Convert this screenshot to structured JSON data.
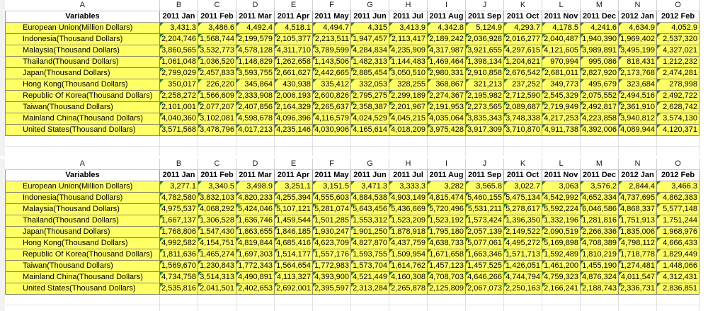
{
  "columns": [
    "A",
    "B",
    "C",
    "D",
    "E",
    "F",
    "G",
    "H",
    "I",
    "J",
    "K",
    "L",
    "M",
    "N",
    "O"
  ],
  "variables_label": "Variables",
  "months": [
    "2011 Jan",
    "2011 Feb",
    "2011 Mar",
    "2011 Apr",
    "2011 May",
    "2011 Jun",
    "2011 Jul",
    "2011 Aug",
    "2011 Sep",
    "2011 Oct",
    "2011 Nov",
    "2011 Dec",
    "2012 Jan",
    "2012 Feb"
  ],
  "colors": {
    "fill": "#ffff66",
    "error_marker": "#2e7d32"
  },
  "sheets": [
    {
      "rows": [
        {
          "label": "European Union(Million Dollars)",
          "values": [
            "3,431.3",
            "3,486.6",
            "4,492.4",
            "4,518.1",
            "4,494.7",
            "4,315",
            "3,413.9",
            "4,342.8",
            "5,124.9",
            "4,293.7",
            "4,178.5",
            "4,241.6",
            "4,634.9",
            "4,052.9"
          ]
        },
        {
          "label": "Indonesia(Thousand Dollars)",
          "values": [
            "2,204,746",
            "1,568,744",
            "2,199,579",
            "2,105,377",
            "2,213,511",
            "1,947,457",
            "2,113,417",
            "2,189,242",
            "2,036,928",
            "2,016,277",
            "2,040,487",
            "1,940,390",
            "1,969,402",
            "2,537,320"
          ]
        },
        {
          "label": "Malaysia(Thousand Dollars)",
          "values": [
            "3,860,565",
            "3,532,773",
            "4,578,128",
            "4,311,710",
            "3,789,599",
            "4,284,834",
            "4,235,909",
            "4,317,987",
            "3,921,655",
            "4,297,615",
            "4,121,605",
            "3,989,891",
            "3,495,199",
            "4,327,021"
          ]
        },
        {
          "label": "Thailand(Thousand Dollars)",
          "values": [
            "1,061,048",
            "1,036,520",
            "1,148,829",
            "1,262,658",
            "1,143,506",
            "1,482,313",
            "1,144,483",
            "1,469,464",
            "1,398,134",
            "1,204,621",
            "970,994",
            "995,086",
            "818,431",
            "1,212,232"
          ]
        },
        {
          "label": "Japan(Thousand Dollars)",
          "values": [
            "2,799,029",
            "2,457,833",
            "3,593,755",
            "2,661,627",
            "2,442,665",
            "2,885,454",
            "3,050,510",
            "2,980,331",
            "2,910,858",
            "2,676,542",
            "2,681,011",
            "2,827,920",
            "2,173,768",
            "2,474,281"
          ]
        },
        {
          "label": "Hong Kong(Thousand Dollars)",
          "values": [
            "350,017",
            "226,220",
            "345,864",
            "430,938",
            "335,412",
            "332,053",
            "328,255",
            "368,867",
            "321,213",
            "237,252",
            "349,773",
            "495,679",
            "323,684",
            "278,998"
          ]
        },
        {
          "label": "Republic Of Korea(Thousand Dollars)",
          "values": [
            "2,258,272",
            "1,566,609",
            "2,333,908",
            "2,006,193",
            "2,600,826",
            "2,795,275",
            "2,299,189",
            "2,274,367",
            "2,195,982",
            "2,712,590",
            "2,545,329",
            "2,075,552",
            "2,494,516",
            "2,492,722"
          ]
        },
        {
          "label": "Taiwan(Thousand Dollars)",
          "values": [
            "2,101,001",
            "2,077,207",
            "2,407,856",
            "2,164,329",
            "2,265,637",
            "2,358,387",
            "2,201,967",
            "2,191,953",
            "2,273,565",
            "2,089,687",
            "2,719,949",
            "2,492,817",
            "2,361,910",
            "2,628,742"
          ]
        },
        {
          "label": "Mainland China(Thousand Dollars)",
          "values": [
            "4,040,360",
            "3,102,081",
            "4,598,678",
            "4,096,396",
            "4,116,579",
            "4,024,529",
            "4,045,215",
            "4,035,064",
            "3,835,343",
            "3,748,338",
            "4,217,253",
            "4,223,858",
            "3,940,812",
            "3,574,130"
          ]
        },
        {
          "label": "United States(Thousand Dollars)",
          "values": [
            "3,571,568",
            "3,478,796",
            "4,017,213",
            "4,235,146",
            "4,030,906",
            "4,165,614",
            "4,018,209",
            "3,975,428",
            "3,917,309",
            "3,710,870",
            "4,911,738",
            "4,392,006",
            "4,089,944",
            "4,120,371"
          ]
        }
      ]
    },
    {
      "rows": [
        {
          "label": "European Union(Million Dollars)",
          "values": [
            "3,277.1",
            "3,340.5",
            "3,498.9",
            "3,251.1",
            "3,151.5",
            "3,471.3",
            "3,333.3",
            "3,282",
            "3,565.8",
            "3,022.7",
            "3,063",
            "3,576.2",
            "2,844.4",
            "3,466.3"
          ]
        },
        {
          "label": "Indonesia(Thousand Dollars)",
          "values": [
            "4,782,580",
            "3,832,103",
            "4,820,233",
            "4,255,394",
            "4,555,603",
            "4,884,538",
            "4,903,149",
            "4,815,474",
            "5,460,155",
            "5,475,134",
            "4,542,992",
            "4,652,334",
            "4,737,695",
            "4,862,383"
          ]
        },
        {
          "label": "Malaysia(Thousand Dollars)",
          "values": [
            "4,975,537",
            "4,068,292",
            "5,424,046",
            "5,107,121",
            "5,281,074",
            "5,643,456",
            "5,436,669",
            "5,720,496",
            "5,531,211",
            "5,278,617",
            "5,592,224",
            "6,046,586",
            "4,868,337",
            "5,577,148"
          ]
        },
        {
          "label": "Thailand(Thousand Dollars)",
          "values": [
            "1,667,137",
            "1,306,528",
            "1,636,746",
            "1,459,544",
            "1,501,285",
            "1,553,312",
            "1,523,209",
            "1,523,192",
            "1,573,424",
            "1,396,350",
            "1,332,196",
            "1,281,816",
            "1,751,913",
            "1,751,244"
          ]
        },
        {
          "label": "Japan(Thousand Dollars)",
          "values": [
            "1,768,806",
            "1,547,430",
            "1,863,655",
            "1,846,185",
            "1,930,247",
            "1,901,250",
            "1,878,918",
            "1,795,180",
            "2,057,139",
            "2,149,522",
            "2,090,519",
            "2,266,336",
            "1,835,006",
            "1,968,976"
          ]
        },
        {
          "label": "Hong Kong(Thousand Dollars)",
          "values": [
            "4,992,582",
            "4,154,751",
            "4,819,844",
            "4,685,416",
            "4,623,709",
            "4,827,870",
            "4,437,759",
            "4,638,733",
            "5,077,061",
            "4,495,272",
            "5,169,898",
            "4,708,389",
            "4,798,112",
            "4,666,433"
          ]
        },
        {
          "label": "Republic Of Korea(Thousand Dollars)",
          "values": [
            "1,811,636",
            "1,465,274",
            "1,697,303",
            "1,514,177",
            "1,557,176",
            "1,593,755",
            "1,509,954",
            "1,671,658",
            "1,663,346",
            "1,571,713",
            "1,592,489",
            "1,810,219",
            "1,718,778",
            "1,829,449"
          ]
        },
        {
          "label": "Taiwan(Thousand Dollars)",
          "values": [
            "1,569,670",
            "1,230,843",
            "1,772,343",
            "1,564,654",
            "1,772,983",
            "1,573,704",
            "1,614,762",
            "1,457,123",
            "1,457,525",
            "1,426,051",
            "1,461,200",
            "1,455,190",
            "1,274,481",
            "1,448,066"
          ]
        },
        {
          "label": "Mainland China(Thousand Dollars)",
          "values": [
            "4,734,758",
            "3,514,313",
            "4,490,891",
            "4,113,327",
            "4,393,900",
            "4,521,449",
            "4,160,308",
            "4,708,703",
            "4,646,266",
            "4,744,794",
            "4,759,323",
            "4,876,324",
            "4,011,547",
            "4,312,431"
          ]
        },
        {
          "label": "United States(Thousand Dollars)",
          "values": [
            "2,535,816",
            "2,041,501",
            "2,402,653",
            "2,692,001",
            "2,395,597",
            "2,313,284",
            "2,265,878",
            "2,125,809",
            "2,067,073",
            "2,250,163",
            "2,166,241",
            "2,188,743",
            "2,336,731",
            "2,836,851"
          ]
        }
      ]
    }
  ]
}
